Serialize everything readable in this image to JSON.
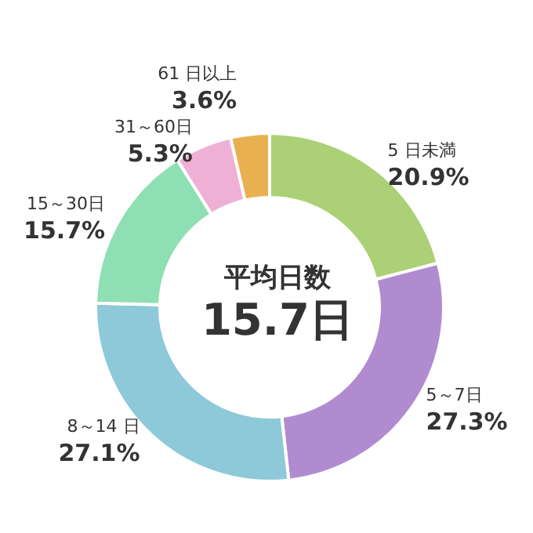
{
  "chart_data": {
    "type": "donut",
    "title": "平均日数",
    "subtitle": "15.7日",
    "categories": [
      "5 日未満",
      "5～7日",
      "8～14 日",
      "15～30日",
      "31～60日",
      "61 日以上"
    ],
    "values": [
      20.9,
      27.3,
      27.1,
      15.7,
      5.3,
      3.6
    ],
    "value_labels": [
      "20.9%",
      "27.3%",
      "27.1%",
      "15.7%",
      "5.3%",
      "3.6%"
    ],
    "colors": [
      "#acd076",
      "#b08bd0",
      "#8ec9d9",
      "#8fdfb4",
      "#efb0d5",
      "#e9b050"
    ],
    "legend": false
  }
}
